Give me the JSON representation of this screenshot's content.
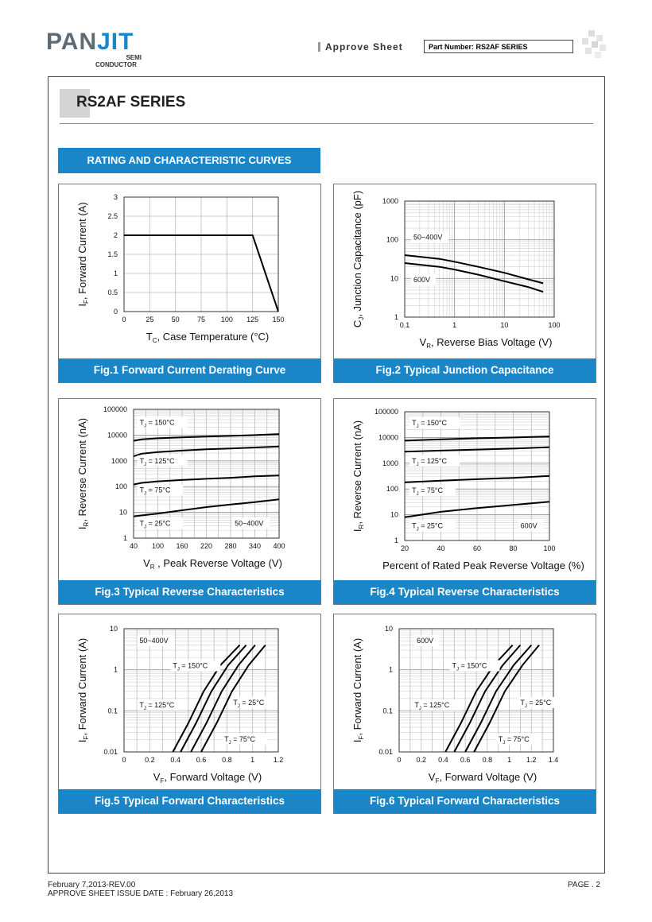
{
  "header": {
    "logo_main": "PAN",
    "logo_accent": "JIT",
    "logo_sub1": "SEMI",
    "logo_sub2": "CONDUCTOR",
    "approve": "Approve Sheet",
    "part_number": "Part Number: RS2AF SERIES"
  },
  "title": "RS2AF SERIES",
  "section_title": "RATING AND CHARACTERISTIC CURVES",
  "figures": [
    {
      "caption": "Fig.1 Forward Current Derating Curve"
    },
    {
      "caption": "Fig.2 Typical Junction Capacitance"
    },
    {
      "caption": "Fig.3 Typical Reverse Characteristics"
    },
    {
      "caption": "Fig.4 Typical Reverse Characteristics"
    },
    {
      "caption": "Fig.5 Typical Forward Characteristics"
    },
    {
      "caption": "Fig.6 Typical Forward Characteristics"
    }
  ],
  "footer": {
    "rev": "February 7,2013-REV.00",
    "issue": "APPROVE SHEET ISSUE DATE : February 26,2013",
    "page": "PAGE . 2"
  },
  "colors": {
    "accent": "#1a86c8",
    "grid": "#bbbbbb"
  },
  "chart_data": [
    {
      "type": "line",
      "title": "Fig.1 Forward Current Derating Curve",
      "xlabel_main": "T",
      "xlabel_sub": "C",
      "xlabel_rest": ", Case Temperature  (°C)",
      "ylabel_main": "I",
      "ylabel_sub": "F",
      "ylabel_rest": ", Forward Current (A)",
      "xscale": "linear",
      "yscale": "linear",
      "xlim": [
        0,
        150
      ],
      "ylim": [
        0,
        3
      ],
      "xticks": [
        0,
        25,
        50,
        75,
        100,
        125,
        150
      ],
      "yticks": [
        0,
        0.5,
        1,
        1.5,
        2,
        2.5,
        3
      ],
      "ytick_labels": [
        "0",
        "0.5",
        "1",
        "1.5",
        "2",
        "2.5",
        "3"
      ],
      "series": [
        {
          "x": [
            0,
            125,
            150
          ],
          "y": [
            2,
            2,
            0
          ]
        }
      ],
      "annotations": []
    },
    {
      "type": "line",
      "title": "Fig.2 Typical Junction Capacitance",
      "xlabel_main": "V",
      "xlabel_sub": "R",
      "xlabel_rest": ", Reverse Bias Voltage (V)",
      "ylabel_main": "C",
      "ylabel_sub": "J",
      "ylabel_rest": ", Junction Capacitance (pF)",
      "xscale": "log",
      "yscale": "log",
      "xlim": [
        0.1,
        100
      ],
      "ylim": [
        1,
        1000
      ],
      "xticks": [
        0.1,
        1,
        10,
        100
      ],
      "xtick_labels": [
        "0.1",
        "1",
        "10",
        "100"
      ],
      "yticks": [
        1,
        10,
        100,
        1000
      ],
      "ytick_labels": [
        "1",
        "10",
        "100",
        "1000"
      ],
      "series": [
        {
          "name": "50~400V",
          "x": [
            0.1,
            0.5,
            1,
            3,
            10,
            30,
            60
          ],
          "y": [
            40,
            32,
            27,
            20,
            14,
            9.5,
            7.5
          ]
        },
        {
          "name": "600V",
          "x": [
            0.1,
            0.5,
            1,
            3,
            10,
            30,
            60
          ],
          "y": [
            25,
            20,
            17,
            12.5,
            8.5,
            6,
            4.5
          ]
        }
      ],
      "annotations": [
        {
          "text": "50~400V",
          "x": 0.15,
          "y": 100
        },
        {
          "text": "600V",
          "x": 0.15,
          "y": 8
        }
      ]
    },
    {
      "type": "line",
      "title": "Fig.3 Typical Reverse Characteristics",
      "xlabel_main": "V",
      "xlabel_sub": "R",
      "xlabel_rest": " , Peak Reverse Voltage (V)",
      "ylabel_main": "I",
      "ylabel_sub": "R",
      "ylabel_rest": ", Reverse Current (nA)",
      "xscale": "linear",
      "yscale": "log",
      "xlim": [
        40,
        400
      ],
      "ylim": [
        1,
        100000
      ],
      "xticks": [
        40,
        100,
        160,
        220,
        280,
        340,
        400
      ],
      "yticks": [
        1,
        10,
        100,
        1000,
        10000,
        100000
      ],
      "ytick_labels": [
        "1",
        "10",
        "100",
        "1000",
        "10000",
        "100000"
      ],
      "series": [
        {
          "name": "TJ = 150°C",
          "x": [
            40,
            60,
            100,
            160,
            220,
            280,
            340,
            400
          ],
          "y": [
            6000,
            6800,
            7500,
            8200,
            8800,
            9300,
            10000,
            11000
          ]
        },
        {
          "name": "TJ = 125°C",
          "x": [
            40,
            60,
            100,
            160,
            220,
            280,
            340,
            400
          ],
          "y": [
            1500,
            1900,
            2200,
            2500,
            2800,
            3000,
            3300,
            3600
          ]
        },
        {
          "name": "TJ = 75°C",
          "x": [
            40,
            60,
            100,
            160,
            220,
            280,
            340,
            400
          ],
          "y": [
            120,
            140,
            160,
            180,
            200,
            220,
            250,
            270
          ]
        },
        {
          "name": "TJ = 25°C",
          "x": [
            40,
            100,
            160,
            220,
            280,
            340,
            400
          ],
          "y": [
            7,
            9,
            12,
            16,
            20,
            25,
            32
          ]
        }
      ],
      "annotations": [
        {
          "text": "T",
          "sub": "J",
          "rest": " = 150°C",
          "x": 55,
          "y": 25000
        },
        {
          "text": "T",
          "sub": "J",
          "rest": " = 125°C",
          "x": 55,
          "y": 800
        },
        {
          "text": "T",
          "sub": "J",
          "rest": " = 75°C",
          "x": 55,
          "y": 60
        },
        {
          "text": "T",
          "sub": "J",
          "rest": " = 25°C",
          "x": 55,
          "y": 3
        },
        {
          "text": "50~400V",
          "x": 290,
          "y": 3
        }
      ]
    },
    {
      "type": "line",
      "title": "Fig.4 Typical Reverse Characteristics",
      "xlabel_main": "Percent of Rated Peak Reverse Voltage (%)",
      "xlabel_sub": "",
      "xlabel_rest": "",
      "ylabel_main": "I",
      "ylabel_sub": "R",
      "ylabel_rest": ", Reverse Current (nA)",
      "xscale": "linear",
      "yscale": "log",
      "xlim": [
        20,
        100
      ],
      "ylim": [
        1,
        100000
      ],
      "xticks": [
        20,
        40,
        60,
        80,
        100
      ],
      "yticks": [
        1,
        10,
        100,
        1000,
        10000,
        100000
      ],
      "ytick_labels": [
        "1",
        "10",
        "100",
        "1000",
        "10000",
        "100000"
      ],
      "series": [
        {
          "name": "TJ = 150°C",
          "x": [
            20,
            40,
            60,
            80,
            100
          ],
          "y": [
            7500,
            8500,
            9300,
            10000,
            11000
          ]
        },
        {
          "name": "TJ = 125°C",
          "x": [
            20,
            40,
            60,
            80,
            100
          ],
          "y": [
            2800,
            3100,
            3400,
            3700,
            4200
          ]
        },
        {
          "name": "TJ = 75°C",
          "x": [
            20,
            40,
            60,
            80,
            100
          ],
          "y": [
            180,
            210,
            240,
            270,
            320
          ]
        },
        {
          "name": "TJ = 25°C",
          "x": [
            20,
            40,
            60,
            80,
            100
          ],
          "y": [
            8,
            13,
            18,
            24,
            32
          ]
        }
      ],
      "annotations": [
        {
          "text": "T",
          "sub": "J",
          "rest": " = 150°C",
          "x": 24,
          "y": 30000
        },
        {
          "text": "T",
          "sub": "J",
          "rest": " = 125°C",
          "x": 24,
          "y": 1000
        },
        {
          "text": "T",
          "sub": "J",
          "rest": " = 75°C",
          "x": 24,
          "y": 70
        },
        {
          "text": "T",
          "sub": "J",
          "rest": " = 25°C",
          "x": 24,
          "y": 3
        },
        {
          "text": "600V",
          "x": 84,
          "y": 3
        }
      ]
    },
    {
      "type": "line",
      "title": "Fig.5 Typical Forward Characteristics",
      "xlabel_main": "V",
      "xlabel_sub": "F",
      "xlabel_rest": ", Forward Voltage (V)",
      "ylabel_main": "I",
      "ylabel_sub": "F",
      "ylabel_rest": ", Forward Current (A)",
      "xscale": "linear",
      "yscale": "log",
      "xlim": [
        0,
        1.2
      ],
      "ylim": [
        0.01,
        10
      ],
      "xticks": [
        0,
        0.2,
        0.4,
        0.6,
        0.8,
        1,
        1.2
      ],
      "xtick_labels": [
        "0",
        "0.2",
        "0.4",
        "0.6",
        "0.8",
        "1",
        "1.2"
      ],
      "yticks": [
        0.01,
        0.1,
        1,
        10
      ],
      "ytick_labels": [
        "0.01",
        "0.1",
        "1",
        "10"
      ],
      "series": [
        {
          "name": "TJ = 150°C",
          "x": [
            0.38,
            0.5,
            0.62,
            0.75,
            0.9
          ],
          "y": [
            0.01,
            0.05,
            0.3,
            1.3,
            4
          ]
        },
        {
          "name": "TJ = 125°C",
          "x": [
            0.44,
            0.56,
            0.68,
            0.81,
            0.95
          ],
          "y": [
            0.01,
            0.05,
            0.3,
            1.3,
            4
          ]
        },
        {
          "name": "TJ = 75°C",
          "x": [
            0.52,
            0.64,
            0.76,
            0.89,
            1.02
          ],
          "y": [
            0.01,
            0.05,
            0.3,
            1.3,
            4
          ]
        },
        {
          "name": "TJ = 25°C",
          "x": [
            0.6,
            0.72,
            0.84,
            0.97,
            1.1
          ],
          "y": [
            0.01,
            0.05,
            0.3,
            1.3,
            4
          ]
        }
      ],
      "annotations": [
        {
          "text": "50~400V",
          "x": 0.12,
          "y": 4.5
        },
        {
          "text": "T",
          "sub": "J",
          "rest": " = 150°C",
          "x": 0.38,
          "y": 1.1
        },
        {
          "text": "T",
          "sub": "J",
          "rest": " = 125°C",
          "x": 0.12,
          "y": 0.12
        },
        {
          "text": "T",
          "sub": "J",
          "rest": " = 25°C",
          "x": 0.85,
          "y": 0.14
        },
        {
          "text": "T",
          "sub": "J",
          "rest": " = 75°C",
          "x": 0.78,
          "y": 0.018
        }
      ]
    },
    {
      "type": "line",
      "title": "Fig.6 Typical Forward Characteristics",
      "xlabel_main": "V",
      "xlabel_sub": "F",
      "xlabel_rest": ", Forward Voltage (V)",
      "ylabel_main": "I",
      "ylabel_sub": "F",
      "ylabel_rest": ", Forward Current (A)",
      "xscale": "linear",
      "yscale": "log",
      "xlim": [
        0,
        1.4
      ],
      "ylim": [
        0.01,
        10
      ],
      "xticks": [
        0,
        0.2,
        0.4,
        0.6,
        0.8,
        1,
        1.2,
        1.4
      ],
      "xtick_labels": [
        "0",
        "0.2",
        "0.4",
        "0.6",
        "0.8",
        "1",
        "1.2",
        "1.4"
      ],
      "yticks": [
        0.01,
        0.1,
        1,
        10
      ],
      "ytick_labels": [
        "0.01",
        "0.1",
        "1",
        "10"
      ],
      "series": [
        {
          "name": "TJ = 150°C",
          "x": [
            0.42,
            0.56,
            0.7,
            0.86,
            1.03
          ],
          "y": [
            0.01,
            0.05,
            0.3,
            1.3,
            4
          ]
        },
        {
          "name": "TJ = 125°C",
          "x": [
            0.5,
            0.64,
            0.78,
            0.94,
            1.1
          ],
          "y": [
            0.01,
            0.05,
            0.3,
            1.3,
            4
          ]
        },
        {
          "name": "TJ = 75°C",
          "x": [
            0.6,
            0.74,
            0.88,
            1.04,
            1.2
          ],
          "y": [
            0.01,
            0.05,
            0.3,
            1.3,
            4
          ]
        },
        {
          "name": "TJ = 25°C",
          "x": [
            0.68,
            0.82,
            0.96,
            1.12,
            1.27
          ],
          "y": [
            0.01,
            0.05,
            0.3,
            1.3,
            4
          ]
        }
      ],
      "annotations": [
        {
          "text": "600V",
          "x": 0.16,
          "y": 4.5
        },
        {
          "text": "T",
          "sub": "J",
          "rest": " = 150°C",
          "x": 0.48,
          "y": 1.1
        },
        {
          "text": "T",
          "sub": "J",
          "rest": " = 125°C",
          "x": 0.14,
          "y": 0.12
        },
        {
          "text": "T",
          "sub": "J",
          "rest": " = 25°C",
          "x": 1.1,
          "y": 0.14
        },
        {
          "text": "T",
          "sub": "J",
          "rest": " = 75°C",
          "x": 0.9,
          "y": 0.018
        }
      ]
    }
  ]
}
